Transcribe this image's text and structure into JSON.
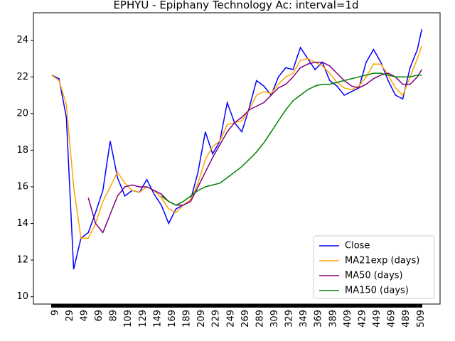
{
  "chart_data": {
    "type": "line",
    "title": "EPHYU - Epiphany Technology Ac: interval=1d",
    "x": [
      4,
      14,
      24,
      34,
      44,
      54,
      64,
      74,
      84,
      94,
      104,
      114,
      124,
      134,
      144,
      154,
      164,
      174,
      184,
      194,
      204,
      214,
      224,
      234,
      244,
      254,
      264,
      274,
      284,
      294,
      304,
      314,
      324,
      334,
      344,
      354,
      364,
      374,
      384,
      394,
      404,
      414,
      424,
      434,
      444,
      454,
      464,
      474,
      484,
      494,
      504,
      510
    ],
    "series": [
      {
        "name": "Close",
        "color": "#0000ff",
        "values": [
          22.1,
          21.9,
          19.8,
          11.5,
          13.2,
          13.5,
          14.6,
          15.8,
          18.5,
          16.5,
          15.5,
          15.8,
          15.7,
          16.4,
          15.6,
          15.0,
          14.0,
          14.8,
          15.0,
          15.3,
          16.8,
          19.0,
          17.8,
          18.5,
          20.6,
          19.5,
          19.0,
          20.3,
          21.8,
          21.5,
          21.0,
          22.0,
          22.5,
          22.4,
          23.6,
          23.0,
          22.4,
          22.8,
          21.8,
          21.5,
          21.0,
          21.2,
          21.4,
          22.8,
          23.5,
          22.8,
          21.8,
          21.0,
          20.8,
          22.5,
          23.5,
          24.6
        ]
      },
      {
        "name": "MA21exp (days)",
        "color": "#ffa500",
        "values": [
          22.1,
          21.8,
          20.5,
          16.0,
          13.2,
          13.2,
          14.0,
          15.2,
          16.0,
          16.8,
          16.2,
          15.8,
          15.7,
          16.0,
          15.8,
          15.4,
          14.8,
          14.6,
          15.0,
          15.3,
          16.2,
          17.5,
          18.2,
          18.5,
          19.4,
          19.5,
          19.6,
          20.2,
          21.0,
          21.2,
          21.1,
          21.6,
          22.0,
          22.2,
          22.9,
          23.0,
          22.8,
          22.6,
          22.2,
          21.7,
          21.4,
          21.3,
          21.5,
          22.0,
          22.7,
          22.7,
          22.1,
          21.4,
          21.0,
          22.0,
          23.0,
          23.7
        ]
      },
      {
        "name": "MA50 (days)",
        "color": "#800080",
        "values": [
          null,
          null,
          null,
          null,
          null,
          15.4,
          14.0,
          13.5,
          14.5,
          15.5,
          16.0,
          16.1,
          16.0,
          16.0,
          15.8,
          15.6,
          15.2,
          15.0,
          15.0,
          15.2,
          16.0,
          16.8,
          17.6,
          18.3,
          19.0,
          19.5,
          19.8,
          20.2,
          20.4,
          20.6,
          21.0,
          21.4,
          21.6,
          22.0,
          22.5,
          22.7,
          22.8,
          22.8,
          22.6,
          22.2,
          21.8,
          21.5,
          21.4,
          21.6,
          21.9,
          22.1,
          22.2,
          22.0,
          21.6,
          21.6,
          22.0,
          22.4
        ]
      },
      {
        "name": "MA150 (days)",
        "color": "#008000",
        "values": [
          null,
          null,
          null,
          null,
          null,
          null,
          null,
          null,
          null,
          null,
          null,
          null,
          null,
          null,
          null,
          15.5,
          15.2,
          15.0,
          15.2,
          15.5,
          15.8,
          16.0,
          16.1,
          16.2,
          16.5,
          16.8,
          17.1,
          17.5,
          17.9,
          18.4,
          19.0,
          19.6,
          20.2,
          20.7,
          21.0,
          21.3,
          21.5,
          21.6,
          21.6,
          21.7,
          21.8,
          21.9,
          22.0,
          22.1,
          22.2,
          22.2,
          22.1,
          22.0,
          22.0,
          22.0,
          22.1,
          22.1
        ]
      }
    ],
    "xlim": [
      -21,
      535
    ],
    "xticks": [
      9,
      29,
      49,
      69,
      89,
      109,
      129,
      149,
      169,
      189,
      209,
      229,
      249,
      269,
      289,
      309,
      329,
      349,
      369,
      389,
      409,
      429,
      449,
      469,
      489,
      509
    ],
    "ylim": [
      9.6,
      25.5
    ],
    "yticks": [
      10,
      12,
      14,
      16,
      18,
      20,
      22,
      24
    ],
    "legend": "lower right"
  }
}
